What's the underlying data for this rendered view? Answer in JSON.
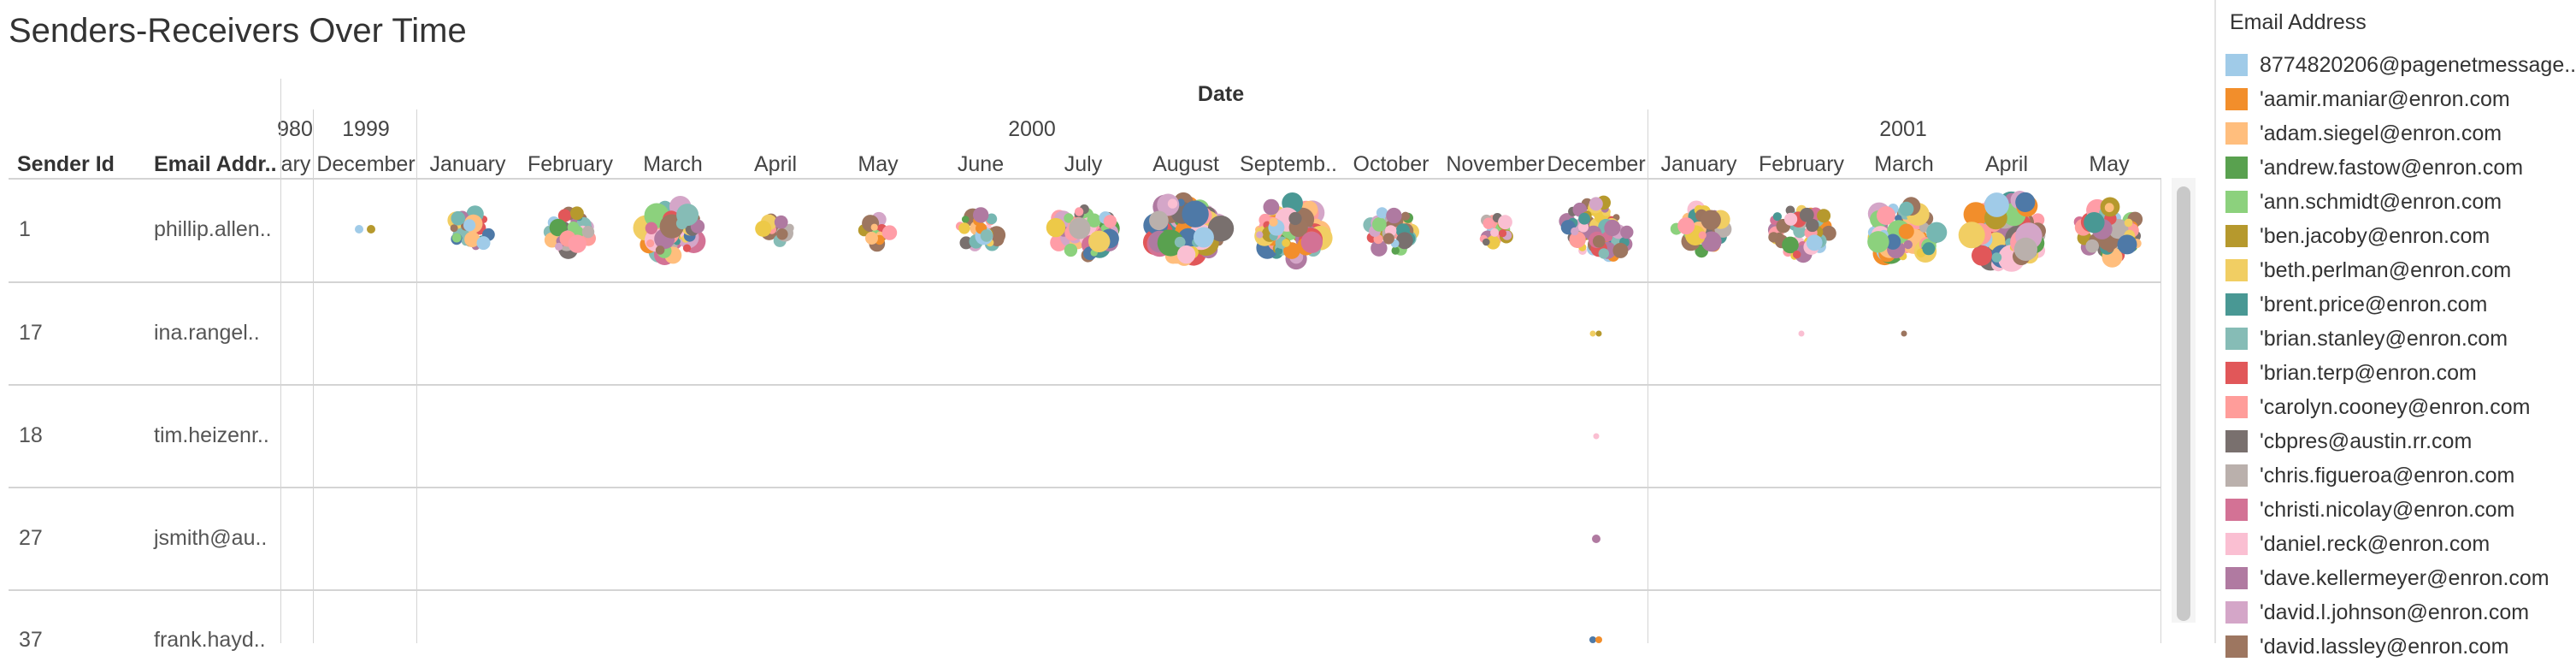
{
  "title": "Senders-Receivers Over Time",
  "header": {
    "date_label": "Date",
    "col_sender": "Sender Id",
    "col_email": "Email Addr..",
    "years": [
      {
        "label": "980"
      },
      {
        "label": "1999"
      },
      {
        "label": "2000"
      },
      {
        "label": "2001"
      }
    ],
    "months": [
      {
        "label": "ary"
      },
      {
        "label": "December"
      },
      {
        "label": "January"
      },
      {
        "label": "February"
      },
      {
        "label": "March"
      },
      {
        "label": "April"
      },
      {
        "label": "May"
      },
      {
        "label": "June"
      },
      {
        "label": "July"
      },
      {
        "label": "August"
      },
      {
        "label": "Septemb.."
      },
      {
        "label": "October"
      },
      {
        "label": "November"
      },
      {
        "label": "December"
      },
      {
        "label": "January"
      },
      {
        "label": "February"
      },
      {
        "label": "March"
      },
      {
        "label": "April"
      },
      {
        "label": "May"
      }
    ]
  },
  "rows": [
    {
      "sender_id": "1",
      "email": "phillip.allen.."
    },
    {
      "sender_id": "17",
      "email": "ina.rangel.."
    },
    {
      "sender_id": "18",
      "email": "tim.heizenr.."
    },
    {
      "sender_id": "27",
      "email": "jsmith@au.."
    },
    {
      "sender_id": "37",
      "email": "frank.hayd.."
    }
  ],
  "legend": {
    "title": "Email Address",
    "items": [
      {
        "label": "8774820206@pagenetmessage..",
        "color": "#a0cbe8"
      },
      {
        "label": "'aamir.maniar@enron.com",
        "color": "#f28e2b"
      },
      {
        "label": "'adam.siegel@enron.com",
        "color": "#ffbe7d"
      },
      {
        "label": "'andrew.fastow@enron.com",
        "color": "#59a14f"
      },
      {
        "label": "'ann.schmidt@enron.com",
        "color": "#8cd17d"
      },
      {
        "label": "'ben.jacoby@enron.com",
        "color": "#b6992d"
      },
      {
        "label": "'beth.perlman@enron.com",
        "color": "#f1ce63"
      },
      {
        "label": "'brent.price@enron.com",
        "color": "#499894"
      },
      {
        "label": "'brian.stanley@enron.com",
        "color": "#86bcb6"
      },
      {
        "label": "'brian.terp@enron.com",
        "color": "#e15759"
      },
      {
        "label": "'carolyn.cooney@enron.com",
        "color": "#ff9d9a"
      },
      {
        "label": "'cbpres@austin.rr.com",
        "color": "#79706e"
      },
      {
        "label": "'chris.figueroa@enron.com",
        "color": "#bab0ac"
      },
      {
        "label": "'christi.nicolay@enron.com",
        "color": "#d37295"
      },
      {
        "label": "'daniel.reck@enron.com",
        "color": "#fabfd2"
      },
      {
        "label": "'dave.kellermeyer@enron.com",
        "color": "#b07aa1"
      },
      {
        "label": "'david.l.johnson@enron.com",
        "color": "#d4a6c8"
      },
      {
        "label": "'david.lassley@enron.com",
        "color": "#9d7660"
      }
    ]
  }
}
